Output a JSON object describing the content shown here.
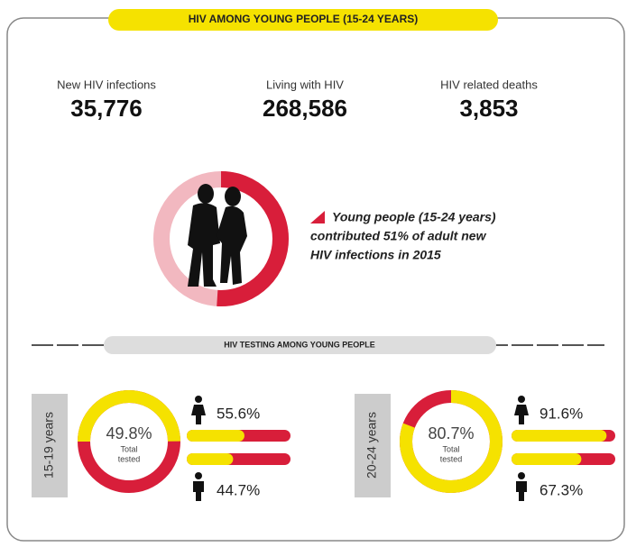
{
  "header": {
    "title": "HIV AMONG YOUNG PEOPLE (15-24 YEARS)"
  },
  "stats": [
    {
      "label": "New HIV infections",
      "value": "35,776"
    },
    {
      "label": "Living with HIV",
      "value": "268,586"
    },
    {
      "label": "HIV related deaths",
      "value": "3,853"
    }
  ],
  "young_people": {
    "share": 51,
    "annotation_lines": [
      "Young people (15-24 years)",
      "contributed 51% of adult new",
      "HIV infections in 2015"
    ]
  },
  "testing": {
    "title": "HIV TESTING AMONG YOUNG PEOPLE",
    "groups": [
      {
        "age": "15-19 years",
        "total": {
          "value": 49.8,
          "label": "49.8%"
        },
        "total_caption": [
          "Total",
          "tested"
        ],
        "female": {
          "value": 55.6,
          "label": "55.6%"
        },
        "male": {
          "value": 44.7,
          "label": "44.7%"
        }
      },
      {
        "age": "20-24 years",
        "total": {
          "value": 80.7,
          "label": "80.7%"
        },
        "total_caption": [
          "Total",
          "tested"
        ],
        "female": {
          "value": 91.6,
          "label": "91.6%"
        },
        "male": {
          "value": 67.3,
          "label": "67.3%"
        }
      }
    ]
  }
}
